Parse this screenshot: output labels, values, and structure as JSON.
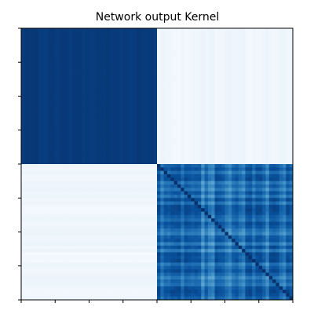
{
  "chart_data": {
    "type": "heatmap",
    "title": "Network output Kernel",
    "xlabel": "",
    "ylabel": "",
    "colormap": "Blues",
    "grid": false,
    "legend": "none",
    "tick_labels_shown": false,
    "x_tick_count": 9,
    "y_tick_count": 9,
    "matrix_size": 80,
    "value_range": [
      0,
      1
    ],
    "blocks": [
      {
        "rows": "first half",
        "cols": "first half",
        "level": "uniform high",
        "approx_value": 0.97
      },
      {
        "rows": "first half",
        "cols": "second half",
        "level": "uniform low",
        "approx_value": 0.05
      },
      {
        "rows": "second half",
        "cols": "first half",
        "level": "uniform low",
        "approx_value": 0.05
      },
      {
        "rows": "second half",
        "cols": "second half",
        "level": "high with row/column variation",
        "approx_value": 0.85
      }
    ]
  },
  "colors": {
    "dark": "#08306b",
    "light": "#f7fbff"
  }
}
